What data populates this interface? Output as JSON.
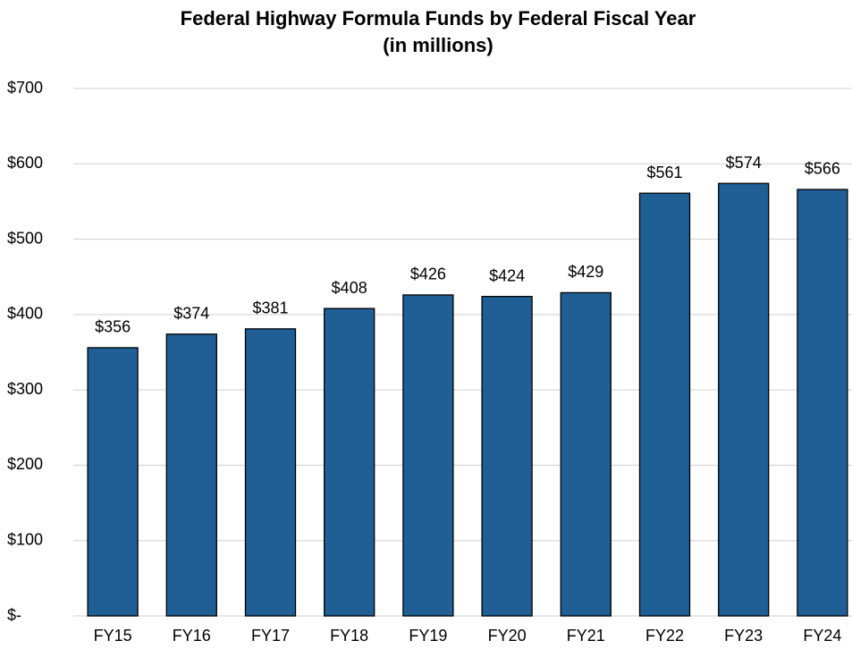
{
  "chart_data": {
    "type": "bar",
    "title": "Federal Highway Formula Funds by Federal Fiscal Year",
    "subtitle": "(in millions)",
    "categories": [
      "FY15",
      "FY16",
      "FY17",
      "FY18",
      "FY19",
      "FY20",
      "FY21",
      "FY22",
      "FY23",
      "FY24"
    ],
    "values": [
      356,
      374,
      381,
      408,
      426,
      424,
      429,
      561,
      574,
      566
    ],
    "value_labels": [
      "$356",
      "$374",
      "$381",
      "$408",
      "$426",
      "$424",
      "$429",
      "$561",
      "$574",
      "$566"
    ],
    "color": "#1f5f95",
    "ylim": [
      0,
      700
    ],
    "yticks": [
      {
        "value": 0,
        "label": "$-"
      },
      {
        "value": 100,
        "label": "$100"
      },
      {
        "value": 200,
        "label": "$200"
      },
      {
        "value": 300,
        "label": "$300"
      },
      {
        "value": 400,
        "label": "$400"
      },
      {
        "value": 500,
        "label": "$500"
      },
      {
        "value": 600,
        "label": "$600"
      },
      {
        "value": 700,
        "label": "$700"
      }
    ],
    "grid": true
  }
}
